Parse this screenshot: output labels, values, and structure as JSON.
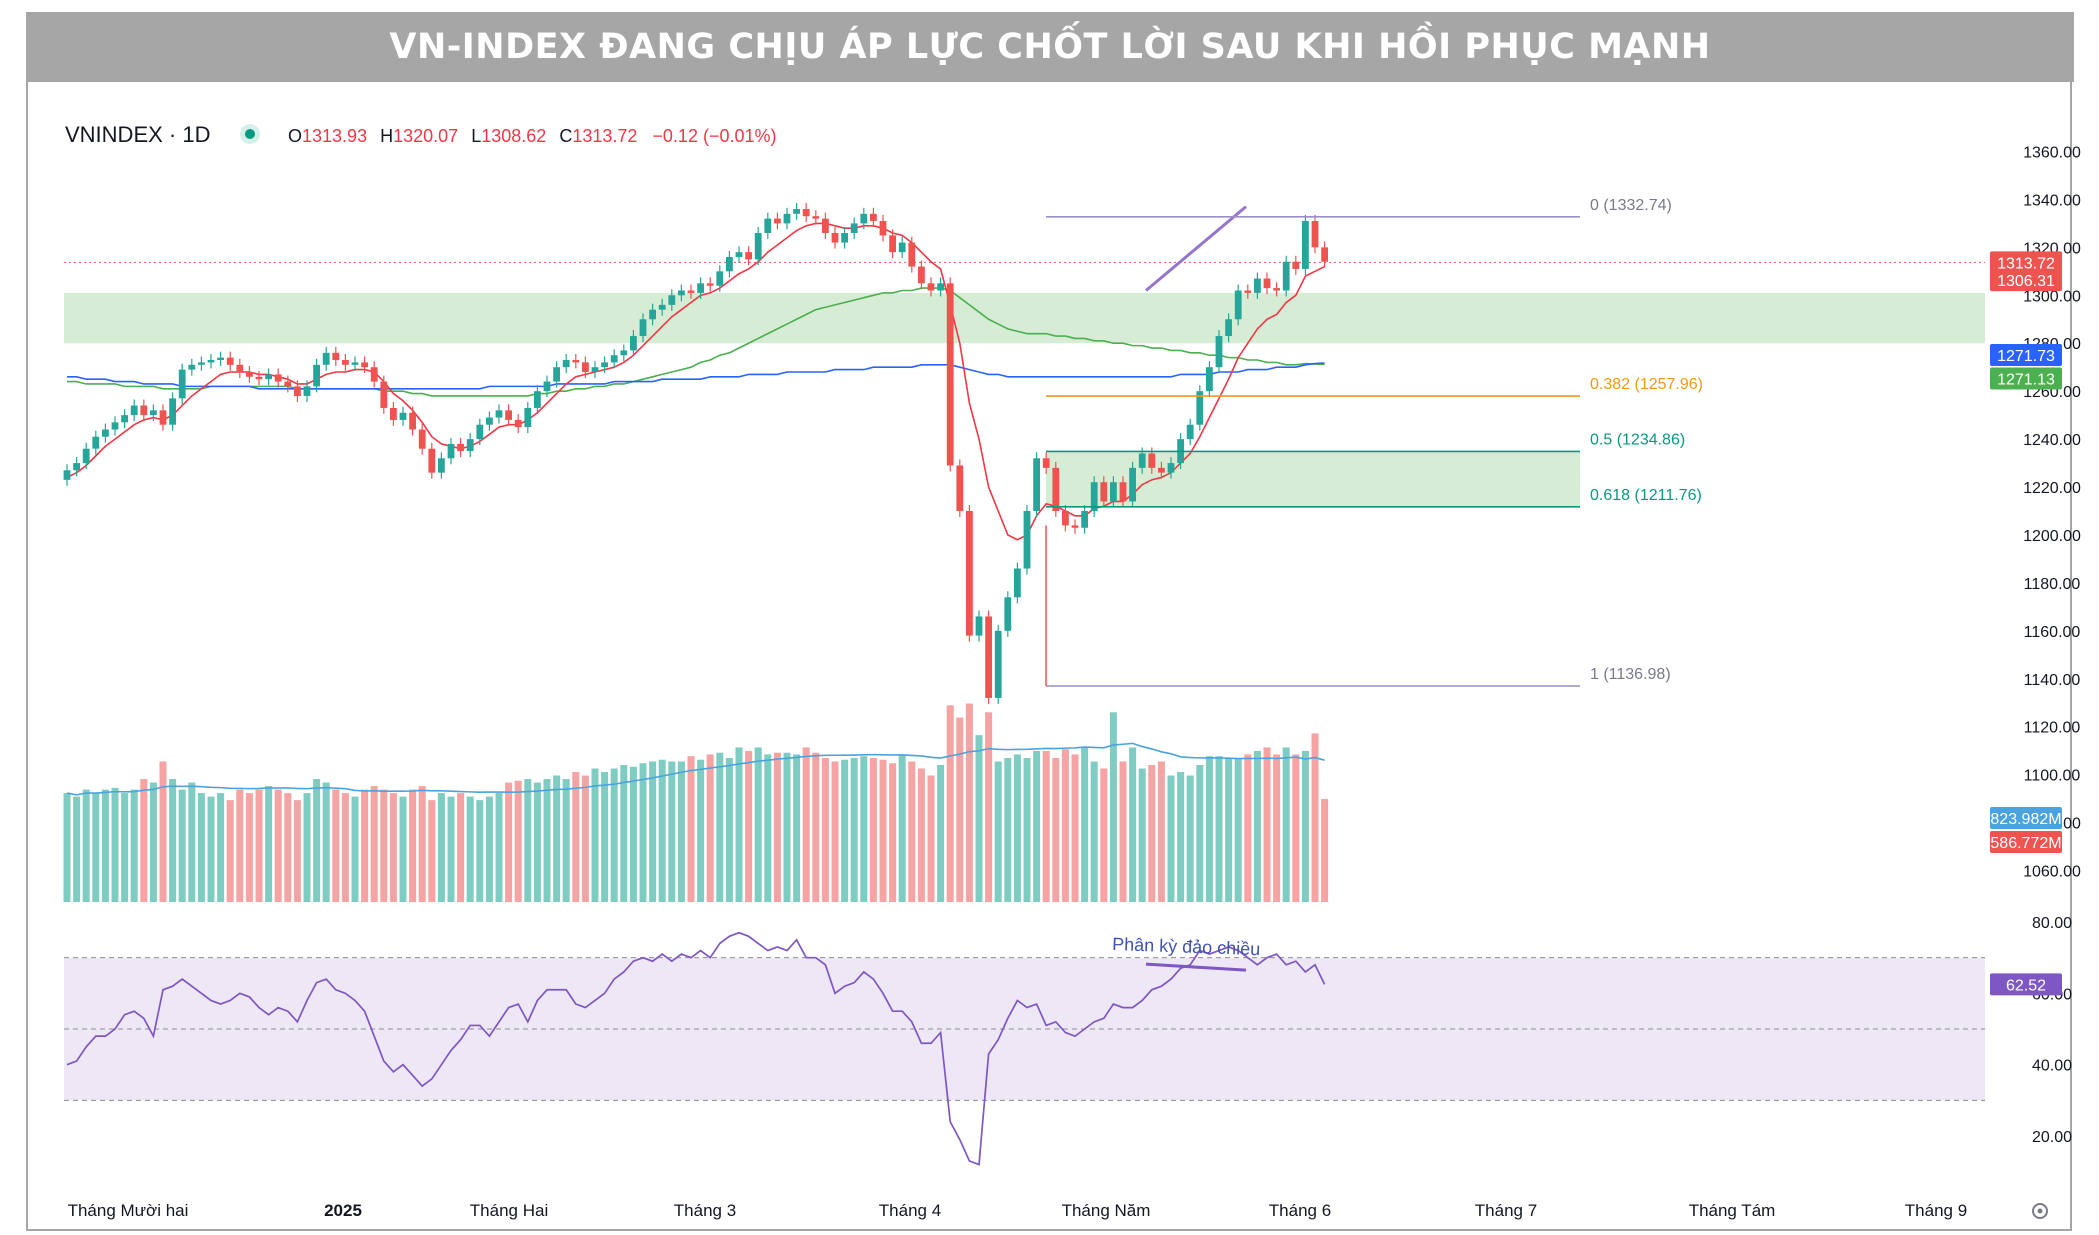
{
  "title": "VN-INDEX ĐANG CHỊU ÁP LỰC CHỐT LỜI SAU KHI HỒI PHỤC MẠNH",
  "legend": {
    "symbol": "VNINDEX · 1D",
    "o_label": "O",
    "o_value": "1313.93",
    "h_label": "H",
    "h_value": "1320.07",
    "l_label": "L",
    "l_value": "1308.62",
    "c_label": "C",
    "c_value": "1313.72",
    "change": "−0.12 (−0.01%)"
  },
  "colors": {
    "up": "#26a69a",
    "down": "#ef5350",
    "ma_red": "#f23645",
    "ma_green": "#4caf50",
    "ma_blue": "#2962ff",
    "fib_orange": "#f29914",
    "fib_green": "#089981",
    "fib_gray": "#787b86",
    "fib_purple": "#9575cd",
    "rsi_line": "#7e57c2",
    "zone_fill": "#d6ecd4",
    "rsi_band": "#ede7f6"
  },
  "chart_data": [
    {
      "type": "candlestick",
      "panel": "price",
      "y_range": [
        1050,
        1365
      ],
      "y_ticks": [
        "1360.00",
        "1340.00",
        "1320.00",
        "1300.00",
        "1280.00",
        "1260.00",
        "1240.00",
        "1220.00",
        "1200.00",
        "1180.00",
        "1160.00",
        "1140.00",
        "1120.00",
        "1100.00",
        "1080.00",
        "1060.00"
      ],
      "x_labels": [
        "Tháng Mười hai",
        "2025",
        "Tháng Hai",
        "Tháng 3",
        "Tháng 4",
        "Tháng Năm",
        "Tháng 6",
        "Tháng 7",
        "Tháng Tám",
        "Tháng 9"
      ],
      "closes": [
        1227,
        1230,
        1236,
        1241,
        1244,
        1247,
        1250,
        1254,
        1250,
        1252,
        1246,
        1257,
        1269,
        1271,
        1272,
        1273,
        1274,
        1271,
        1268,
        1266,
        1265,
        1267,
        1264,
        1262,
        1258,
        1262,
        1271,
        1276,
        1273,
        1271,
        1272,
        1270,
        1264,
        1253,
        1248,
        1251,
        1244,
        1236,
        1226,
        1232,
        1238,
        1235,
        1240,
        1246,
        1249,
        1252,
        1248,
        1245,
        1253,
        1260,
        1264,
        1270,
        1273,
        1272,
        1268,
        1270,
        1272,
        1275,
        1277,
        1283,
        1290,
        1294,
        1296,
        1300,
        1302,
        1301,
        1305,
        1304,
        1310,
        1316,
        1318,
        1315,
        1326,
        1332,
        1330,
        1334,
        1336,
        1333,
        1332,
        1326,
        1322,
        1326,
        1330,
        1334,
        1331,
        1325,
        1318,
        1322,
        1312,
        1305,
        1302,
        1305,
        1229,
        1210,
        1158,
        1166,
        1132,
        1160,
        1174,
        1186,
        1210,
        1232,
        1228,
        1210,
        1204,
        1203,
        1210,
        1222,
        1214,
        1222,
        1214,
        1228,
        1234,
        1228,
        1226,
        1230,
        1240,
        1246,
        1260,
        1270,
        1283,
        1290,
        1302,
        1301,
        1307,
        1303,
        1302,
        1314,
        1311,
        1331,
        1320,
        1314
      ],
      "last_close": 1313.72,
      "support_zone": [
        1280,
        1301
      ],
      "retracement_zone": [
        1211.76,
        1234.86
      ],
      "ma_fast": [
        1224,
        1226,
        1229,
        1233,
        1237,
        1240,
        1243,
        1246,
        1248,
        1249,
        1248,
        1250,
        1254,
        1258,
        1261,
        1264,
        1267,
        1268,
        1268,
        1268,
        1267,
        1267,
        1266,
        1265,
        1263,
        1263,
        1265,
        1267,
        1268,
        1268,
        1269,
        1269,
        1268,
        1264,
        1259,
        1256,
        1252,
        1247,
        1241,
        1238,
        1237,
        1236,
        1237,
        1239,
        1242,
        1245,
        1246,
        1246,
        1248,
        1251,
        1255,
        1259,
        1263,
        1266,
        1267,
        1268,
        1269,
        1270,
        1272,
        1275,
        1279,
        1283,
        1287,
        1291,
        1294,
        1297,
        1300,
        1301,
        1303,
        1306,
        1309,
        1311,
        1314,
        1318,
        1321,
        1324,
        1327,
        1329,
        1330,
        1330,
        1329,
        1328,
        1328,
        1329,
        1329,
        1328,
        1326,
        1325,
        1322,
        1318,
        1314,
        1311,
        1296,
        1280,
        1255,
        1240,
        1220,
        1210,
        1200,
        1198,
        1200,
        1208,
        1213,
        1212,
        1210,
        1208,
        1208,
        1211,
        1212,
        1214,
        1214,
        1217,
        1221,
        1223,
        1224,
        1226,
        1230,
        1234,
        1241,
        1249,
        1257,
        1265,
        1274,
        1280,
        1286,
        1290,
        1292,
        1297,
        1300,
        1308,
        1310,
        1312
      ],
      "ma_green": [
        1264,
        1264,
        1263,
        1263,
        1263,
        1263,
        1262,
        1262,
        1262,
        1262,
        1261,
        1261,
        1261,
        1261,
        1261,
        1262,
        1262,
        1262,
        1262,
        1262,
        1262,
        1262,
        1262,
        1262,
        1261,
        1261,
        1261,
        1261,
        1261,
        1261,
        1261,
        1261,
        1261,
        1260,
        1260,
        1260,
        1259,
        1259,
        1258,
        1258,
        1258,
        1258,
        1258,
        1258,
        1258,
        1258,
        1258,
        1258,
        1258,
        1259,
        1259,
        1260,
        1260,
        1261,
        1261,
        1262,
        1262,
        1263,
        1263,
        1264,
        1265,
        1266,
        1267,
        1268,
        1269,
        1270,
        1272,
        1273,
        1275,
        1276,
        1278,
        1280,
        1282,
        1284,
        1286,
        1288,
        1290,
        1292,
        1294,
        1295,
        1296,
        1297,
        1298,
        1299,
        1300,
        1301,
        1301,
        1302,
        1302,
        1303,
        1303,
        1303,
        1302,
        1299,
        1296,
        1293,
        1290,
        1288,
        1286,
        1285,
        1284,
        1284,
        1284,
        1283,
        1283,
        1282,
        1282,
        1281,
        1281,
        1280,
        1280,
        1279,
        1279,
        1278,
        1278,
        1277,
        1277,
        1276,
        1276,
        1275,
        1275,
        1274,
        1274,
        1273,
        1273,
        1272,
        1272,
        1271,
        1271,
        1271.5,
        1271.3,
        1271.13
      ],
      "ma_blue": [
        1266,
        1266,
        1265,
        1265,
        1265,
        1264,
        1264,
        1264,
        1263,
        1263,
        1263,
        1263,
        1262,
        1262,
        1262,
        1262,
        1262,
        1262,
        1262,
        1262,
        1261,
        1261,
        1261,
        1261,
        1261,
        1261,
        1261,
        1261,
        1261,
        1261,
        1261,
        1261,
        1261,
        1261,
        1261,
        1261,
        1261,
        1261,
        1261,
        1261,
        1261,
        1261,
        1261,
        1261,
        1262,
        1262,
        1262,
        1262,
        1262,
        1262,
        1262,
        1263,
        1263,
        1263,
        1263,
        1263,
        1263,
        1264,
        1264,
        1264,
        1264,
        1264,
        1265,
        1265,
        1265,
        1265,
        1265,
        1266,
        1266,
        1266,
        1266,
        1267,
        1267,
        1267,
        1267,
        1268,
        1268,
        1268,
        1268,
        1268,
        1269,
        1269,
        1269,
        1269,
        1270,
        1270,
        1270,
        1270,
        1270,
        1271,
        1271,
        1271,
        1271,
        1270,
        1269,
        1268,
        1267,
        1267,
        1266,
        1266,
        1266,
        1266,
        1266,
        1266,
        1266,
        1266,
        1266,
        1266,
        1266,
        1266,
        1266,
        1266,
        1266,
        1266,
        1266,
        1266,
        1267,
        1267,
        1267,
        1267,
        1268,
        1268,
        1268,
        1269,
        1269,
        1269,
        1270,
        1270,
        1270,
        1271,
        1271.5,
        1271.73
      ],
      "price_badges": [
        "1313.72",
        "1306.31",
        "1271.73",
        "1271.13"
      ],
      "fibonacci": [
        {
          "label": "0 (1332.74)",
          "value": 1332.74
        },
        {
          "label": "0.382 (1257.96)",
          "value": 1257.96
        },
        {
          "label": "0.5 (1234.86)",
          "value": 1234.86
        },
        {
          "label": "0.618 (1211.76)",
          "value": 1211.76
        },
        {
          "label": "1 (1136.98)",
          "value": 1136.98
        }
      ]
    },
    {
      "type": "bar",
      "panel": "volume",
      "unit": "M",
      "values": [
        620,
        600,
        640,
        620,
        640,
        650,
        620,
        640,
        700,
        680,
        800,
        700,
        640,
        680,
        620,
        600,
        620,
        580,
        640,
        620,
        640,
        660,
        640,
        620,
        580,
        620,
        700,
        680,
        640,
        620,
        600,
        640,
        660,
        640,
        620,
        600,
        640,
        660,
        580,
        620,
        600,
        620,
        600,
        580,
        600,
        620,
        680,
        690,
        700,
        680,
        700,
        720,
        700,
        740,
        720,
        760,
        740,
        760,
        780,
        770,
        790,
        800,
        810,
        800,
        800,
        830,
        810,
        840,
        850,
        820,
        880,
        860,
        880,
        840,
        850,
        850,
        840,
        880,
        850,
        820,
        800,
        810,
        820,
        830,
        820,
        810,
        790,
        840,
        800,
        760,
        720,
        780,
        1120,
        1050,
        1130,
        950,
        1080,
        800,
        820,
        840,
        820,
        860,
        860,
        820,
        870,
        840,
        880,
        800,
        760,
        1080,
        800,
        880,
        760,
        780,
        800,
        720,
        740,
        720,
        780,
        830,
        830,
        820,
        820,
        840,
        860,
        880,
        840,
        880,
        840,
        860,
        960,
        586.772
      ],
      "directions": "derived-from-price",
      "volume_ma_last": 823.982,
      "badges": [
        "823.982M",
        "586.772M"
      ]
    },
    {
      "type": "line",
      "panel": "rsi",
      "y_ticks": [
        "80.00",
        "60.00",
        "40.00",
        "20.00"
      ],
      "band": [
        30,
        70
      ],
      "mid": 50,
      "values": [
        40,
        41,
        45,
        48,
        48,
        50,
        54,
        55,
        53,
        48,
        61,
        62,
        64,
        62,
        60,
        58,
        57,
        58,
        60,
        59,
        56,
        54,
        56,
        55,
        52,
        58,
        63,
        64,
        61,
        60,
        58,
        55,
        48,
        41,
        38,
        40,
        37,
        34,
        36,
        40,
        44,
        47,
        51,
        51,
        48,
        52,
        56,
        57,
        52,
        58,
        61,
        61,
        61,
        57,
        56,
        58,
        60,
        64,
        66,
        69,
        70,
        69,
        71,
        69,
        71,
        70,
        72,
        70,
        74,
        76,
        77,
        76,
        74,
        72,
        73,
        72,
        75,
        70,
        70,
        68,
        60,
        62,
        63,
        66,
        64,
        60,
        55,
        55,
        52,
        46,
        46,
        49,
        24,
        19,
        13,
        12,
        43,
        47,
        53,
        58,
        56,
        57,
        51,
        52,
        49,
        48,
        50,
        52,
        53,
        57,
        56,
        56,
        58,
        61,
        62,
        64,
        67,
        68,
        72,
        71,
        72,
        73,
        72,
        70,
        68,
        70,
        71,
        68,
        69,
        66,
        68,
        62.52
      ],
      "last_value": "62.52",
      "annotation": "Phân kỳ đảo chiều"
    }
  ]
}
